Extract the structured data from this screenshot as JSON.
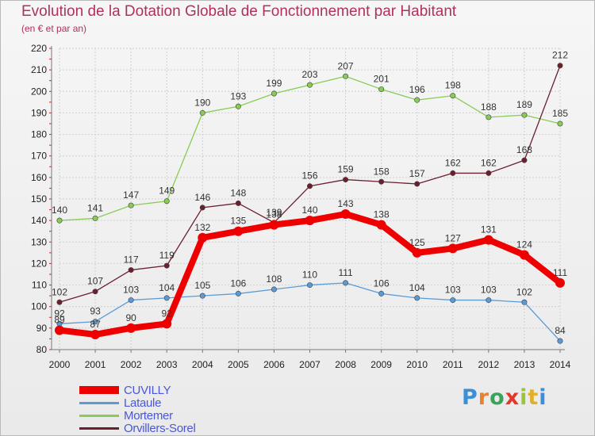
{
  "chart_data": {
    "type": "line",
    "title": "Evolution de la Dotation Globale de Fonctionnement par Habitant",
    "subtitle": "(en € et par an)",
    "x": [
      "2000",
      "2001",
      "2002",
      "2003",
      "2004",
      "2005",
      "2006",
      "2007",
      "2008",
      "2009",
      "2010",
      "2011",
      "2012",
      "2013",
      "2014"
    ],
    "ylim": [
      80,
      220
    ],
    "yticks": [
      80,
      90,
      100,
      110,
      120,
      130,
      140,
      150,
      160,
      170,
      180,
      190,
      200,
      210,
      220
    ],
    "grid": true,
    "legend_position": "bottom-left",
    "series": [
      {
        "name": "Mortemer",
        "color": "#88cc55",
        "values": [
          140,
          141,
          147,
          149,
          190,
          193,
          199,
          203,
          207,
          201,
          196,
          198,
          188,
          189,
          185
        ]
      },
      {
        "name": "Orvillers-Sorel",
        "color": "#6b1f2e",
        "values": [
          102,
          107,
          117,
          119,
          146,
          148,
          139,
          156,
          159,
          158,
          157,
          162,
          162,
          168,
          212
        ]
      },
      {
        "name": "Lataule",
        "color": "#5b9bd5",
        "values": [
          92,
          93,
          103,
          104,
          105,
          106,
          108,
          110,
          111,
          106,
          104,
          103,
          103,
          102,
          84
        ]
      },
      {
        "name": "CUVILLY",
        "color": "#ee0000",
        "values": [
          89,
          87,
          90,
          92,
          132,
          135,
          138,
          140,
          143,
          138,
          125,
          127,
          131,
          124,
          111
        ]
      }
    ],
    "legend_order": [
      "CUVILLY",
      "Lataule",
      "Mortemer",
      "Orvillers-Sorel"
    ]
  },
  "logo": {
    "text": "Proxiti"
  }
}
